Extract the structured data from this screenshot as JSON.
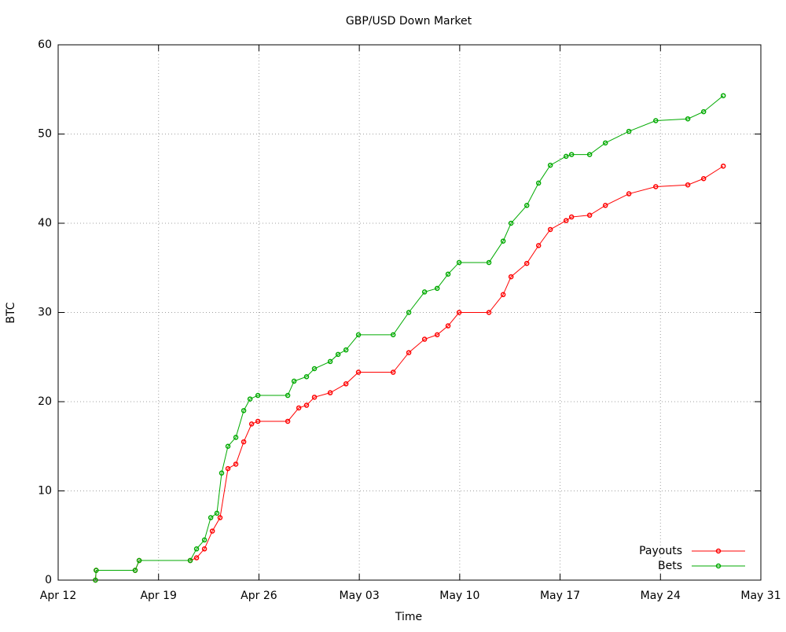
{
  "chart_data": {
    "type": "line",
    "title": "GBP/USD Down Market",
    "xlabel": "Time",
    "ylabel": "BTC",
    "xlim": [
      0,
      49
    ],
    "xticks": [
      {
        "value": 0,
        "label": "Apr 12"
      },
      {
        "value": 7,
        "label": "Apr 19"
      },
      {
        "value": 14,
        "label": "Apr 26"
      },
      {
        "value": 21,
        "label": "May 03"
      },
      {
        "value": 28,
        "label": "May 10"
      },
      {
        "value": 35,
        "label": "May 17"
      },
      {
        "value": 42,
        "label": "May 24"
      },
      {
        "value": 49,
        "label": "May 31"
      }
    ],
    "ylim": [
      0,
      60
    ],
    "yticks": [
      0,
      10,
      20,
      30,
      40,
      50,
      60
    ],
    "grid": true,
    "legend": "bottom-right",
    "series": [
      {
        "name": "Payouts",
        "color": "#ff0000",
        "x": [
          2.6,
          2.65,
          5.37,
          5.65,
          9.21,
          9.65,
          10.2,
          10.75,
          11.29,
          11.84,
          12.39,
          12.94,
          13.49,
          13.93,
          16.01,
          16.78,
          17.32,
          17.87,
          18.97,
          20.07,
          20.94,
          23.36,
          24.45,
          25.55,
          26.43,
          27.19,
          27.96,
          30.04,
          31.03,
          31.58,
          32.68,
          33.5,
          34.32,
          35.42,
          35.8,
          37.06,
          38.16,
          39.8,
          41.67,
          43.91,
          45.01,
          46.38
        ],
        "values": [
          0,
          1.1,
          1.1,
          2.2,
          2.2,
          2.5,
          3.5,
          5.5,
          7,
          12.5,
          13,
          15.5,
          17.5,
          17.8,
          17.8,
          19.3,
          19.6,
          20.5,
          21,
          22,
          23.3,
          23.3,
          25.5,
          27,
          27.5,
          28.5,
          30,
          30,
          32,
          34,
          35.5,
          37.5,
          39.3,
          40.3,
          40.7,
          40.9,
          42,
          43.3,
          44.1,
          44.3,
          45,
          46.4
        ]
      },
      {
        "name": "Bets",
        "color": "#00aa00",
        "x": [
          2.6,
          2.65,
          5.37,
          5.65,
          9.21,
          9.65,
          10.2,
          10.64,
          11.07,
          11.4,
          11.84,
          12.39,
          12.94,
          13.38,
          13.93,
          16.01,
          16.45,
          17.32,
          17.87,
          18.97,
          19.52,
          20.07,
          20.94,
          23.36,
          24.45,
          25.55,
          26.43,
          27.19,
          27.96,
          30.04,
          31.03,
          31.58,
          32.68,
          33.5,
          34.32,
          35.42,
          35.8,
          37.06,
          38.16,
          39.8,
          41.67,
          43.91,
          45.01,
          46.38
        ],
        "values": [
          0,
          1.1,
          1.1,
          2.2,
          2.2,
          3.5,
          4.5,
          7,
          7.5,
          12,
          15,
          16,
          19,
          20.3,
          20.7,
          20.7,
          22.3,
          22.8,
          23.7,
          24.5,
          25.3,
          25.8,
          27.5,
          27.5,
          30,
          32.3,
          32.7,
          34.3,
          35.6,
          35.6,
          38,
          40,
          42,
          44.5,
          46.5,
          47.5,
          47.7,
          47.7,
          49,
          50.3,
          51.5,
          51.7,
          52.5,
          54.3
        ]
      }
    ]
  }
}
